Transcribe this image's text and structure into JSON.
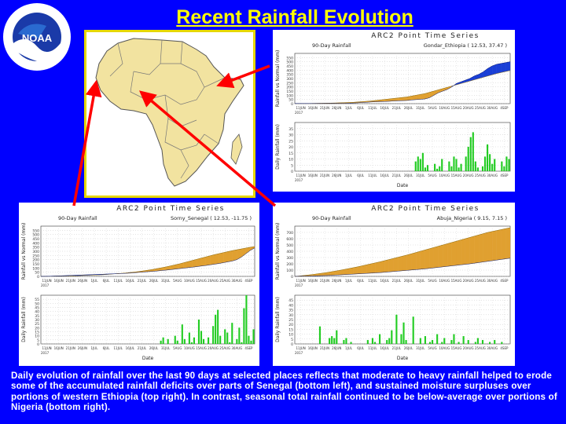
{
  "slide": {
    "title": "Recent Rainfall Evolution"
  },
  "logo": {
    "text": "NOAA"
  },
  "caption": "Daily evolution of rainfall over the last 90 days at selected places reflects that moderate to heavy rainfall helped to erode some of the accumulated rainfall deficits over parts of Senegal (bottom left), and sustained moisture surpluses over portions of western Ethiopia (top right). In contrast, seasonal total rainfall continued to be below-average over portions of Nigeria (bottom right).",
  "colors": {
    "background": "#0000ff",
    "title": "#ffff00",
    "surplus": "#1a3fd6",
    "deficit": "#e0a030",
    "daily": "#22cc22"
  },
  "chart_data": [
    {
      "type": "area",
      "panel": "ethiopia",
      "header": "ARC2 Point Time Series",
      "subtitle_left": "90-Day Rainfall",
      "subtitle_right": "Gondar_Ethiopia ( 12.53, 37.47 )",
      "ylabel_top": "Rainfall vs Normal (mm)",
      "ylabel_bottom": "Daily Rainfall (mm)",
      "xlabel": "Date",
      "ylim_top": [
        0,
        600
      ],
      "yticks_top": [
        "0",
        "50",
        "100",
        "150",
        "200",
        "250",
        "300",
        "350",
        "400",
        "450",
        "500",
        "550"
      ],
      "ylim_bottom": [
        0,
        40
      ],
      "yticks_bottom": [
        "0",
        "5",
        "10",
        "15",
        "20",
        "25",
        "30",
        "35"
      ],
      "surplus_color": "#1a3fd6",
      "deficit_color": "#e0a030",
      "series": [
        {
          "name": "Observed",
          "values": [
            2,
            2,
            2,
            2,
            2,
            2,
            2,
            3,
            3,
            3,
            3,
            4,
            6,
            8,
            10,
            14,
            16,
            20,
            22,
            24,
            26,
            28,
            32,
            34,
            36,
            38,
            44,
            48,
            52,
            56,
            70,
            100,
            130,
            150,
            170,
            200,
            240,
            260,
            280,
            300,
            330,
            350,
            380,
            420,
            450,
            470,
            480,
            490,
            500
          ]
        },
        {
          "name": "Normal",
          "values": [
            1,
            2,
            2,
            2,
            3,
            4,
            5,
            6,
            7,
            8,
            10,
            12,
            14,
            16,
            20,
            24,
            28,
            32,
            38,
            44,
            50,
            56,
            62,
            68,
            74,
            80,
            90,
            100,
            110,
            120,
            135,
            150,
            165,
            180,
            195,
            210,
            225,
            240,
            255,
            270,
            285,
            300,
            315,
            330,
            345,
            360,
            372,
            384,
            396
          ]
        }
      ],
      "daily": [
        0,
        0,
        0,
        0,
        0,
        0,
        0,
        0,
        0,
        0,
        0,
        0,
        0,
        0,
        0,
        0,
        0,
        0,
        0,
        0,
        0,
        0,
        0,
        0,
        0,
        0,
        0,
        0,
        0,
        0,
        0,
        0,
        0,
        0,
        0,
        0,
        0,
        0,
        0,
        0,
        0,
        0,
        0,
        0,
        0,
        0,
        0,
        0,
        0,
        0,
        8,
        12,
        10,
        15,
        3,
        5,
        0,
        0,
        6,
        2,
        4,
        10,
        0,
        0,
        8,
        4,
        12,
        10,
        3,
        6,
        0,
        12,
        20,
        28,
        32,
        8,
        3,
        0,
        4,
        12,
        22,
        14,
        6,
        10,
        0,
        0,
        8,
        4,
        12,
        10
      ]
    },
    {
      "type": "area",
      "panel": "senegal",
      "header": "ARC2 Point Time Series",
      "subtitle_left": "90-Day Rainfall",
      "subtitle_right": "Sorny_Senegal ( 12.53, -11.75 )",
      "ylabel_top": "Rainfall vs Normal (mm)",
      "ylabel_bottom": "Daily Rainfall (mm)",
      "xlabel": "Date",
      "ylim_top": [
        0,
        600
      ],
      "yticks_top": [
        "0",
        "50",
        "100",
        "150",
        "200",
        "250",
        "300",
        "350",
        "400",
        "450",
        "500",
        "550"
      ],
      "ylim_bottom": [
        0,
        60
      ],
      "yticks_bottom": [
        "0",
        "5",
        "10",
        "15",
        "20",
        "25",
        "30",
        "35",
        "40",
        "45",
        "50",
        "55"
      ],
      "surplus_color": "#1a3fd6",
      "deficit_color": "#e0a030",
      "series": [
        {
          "name": "Observed",
          "values": [
            0,
            1,
            2,
            4,
            6,
            8,
            10,
            12,
            14,
            16,
            18,
            20,
            22,
            24,
            26,
            28,
            30,
            32,
            34,
            36,
            40,
            44,
            48,
            52,
            56,
            60,
            64,
            70,
            74,
            80,
            86,
            92,
            98,
            104,
            110,
            116,
            124,
            130,
            138,
            146,
            154,
            164,
            174,
            184,
            200,
            230,
            270,
            310,
            340
          ]
        },
        {
          "name": "Normal",
          "values": [
            0,
            1,
            2,
            3,
            4,
            5,
            6,
            7,
            8,
            10,
            12,
            14,
            16,
            18,
            20,
            24,
            28,
            32,
            36,
            40,
            46,
            52,
            58,
            66,
            74,
            82,
            92,
            102,
            112,
            124,
            136,
            148,
            162,
            176,
            190,
            204,
            218,
            232,
            246,
            260,
            272,
            284,
            296,
            308,
            318,
            328,
            338,
            348,
            356
          ]
        }
      ],
      "daily": [
        0,
        0,
        0,
        0,
        0,
        0,
        0,
        0,
        0,
        0,
        0,
        0,
        0,
        0,
        0,
        0,
        0,
        0,
        0,
        0,
        0,
        0,
        0,
        0,
        0,
        0,
        0,
        0,
        0,
        0,
        0,
        0,
        0,
        0,
        0,
        0,
        0,
        0,
        0,
        0,
        0,
        0,
        0,
        0,
        0,
        0,
        0,
        0,
        0,
        0,
        4,
        8,
        0,
        6,
        0,
        0,
        10,
        4,
        0,
        24,
        6,
        0,
        14,
        2,
        8,
        0,
        30,
        16,
        6,
        0,
        8,
        0,
        22,
        36,
        42,
        10,
        0,
        18,
        14,
        2,
        26,
        0,
        6,
        20,
        2,
        44,
        60,
        10,
        4,
        18
      ]
    },
    {
      "type": "area",
      "panel": "nigeria",
      "header": "ARC2 Point Time Series",
      "subtitle_left": "90-Day Rainfall",
      "subtitle_right": "Abuja_Nigeria ( 9.15, 7.15 )",
      "ylabel_top": "Rainfall vs Normal (mm)",
      "ylabel_bottom": "Daily Rainfall (mm)",
      "xlabel": "Date",
      "ylim_top": [
        0,
        800
      ],
      "yticks_top": [
        "0",
        "100",
        "200",
        "300",
        "400",
        "500",
        "600",
        "700"
      ],
      "ylim_bottom": [
        0,
        50
      ],
      "yticks_bottom": [
        "0",
        "5",
        "10",
        "15",
        "20",
        "25",
        "30",
        "35",
        "40",
        "45"
      ],
      "surplus_color": "#1a3fd6",
      "deficit_color": "#e0a030",
      "series": [
        {
          "name": "Observed",
          "values": [
            0,
            2,
            4,
            6,
            8,
            10,
            12,
            14,
            16,
            20,
            24,
            28,
            32,
            36,
            40,
            44,
            48,
            52,
            56,
            60,
            66,
            72,
            78,
            84,
            90,
            96,
            102,
            108,
            114,
            120,
            128,
            136,
            144,
            152,
            160,
            168,
            176,
            184,
            192,
            200,
            210,
            220,
            230,
            240,
            250,
            260,
            270,
            280,
            290
          ]
        },
        {
          "name": "Normal",
          "values": [
            0,
            6,
            14,
            22,
            30,
            40,
            50,
            60,
            72,
            84,
            96,
            110,
            124,
            138,
            152,
            168,
            184,
            200,
            216,
            232,
            250,
            268,
            286,
            304,
            322,
            340,
            360,
            380,
            400,
            420,
            440,
            460,
            480,
            500,
            520,
            540,
            560,
            580,
            600,
            620,
            640,
            660,
            680,
            700,
            715,
            730,
            745,
            760,
            775
          ]
        }
      ],
      "daily": [
        0,
        0,
        0,
        0,
        0,
        0,
        0,
        0,
        0,
        0,
        18,
        0,
        0,
        0,
        6,
        8,
        6,
        14,
        0,
        0,
        4,
        6,
        0,
        2,
        0,
        0,
        0,
        0,
        0,
        0,
        4,
        0,
        6,
        2,
        0,
        10,
        0,
        0,
        4,
        6,
        14,
        0,
        30,
        0,
        10,
        22,
        4,
        0,
        0,
        28,
        0,
        0,
        6,
        0,
        8,
        0,
        2,
        4,
        0,
        10,
        0,
        2,
        6,
        0,
        0,
        4,
        10,
        0,
        2,
        0,
        8,
        0,
        4,
        0,
        0,
        2,
        6,
        0,
        4,
        0,
        0,
        2,
        0,
        4,
        0,
        0,
        2,
        0,
        0,
        0
      ]
    }
  ],
  "x_ticks": [
    "11JUN",
    "16JUN",
    "21JUN",
    "26JUN",
    "1JUL",
    "6JUL",
    "11JUL",
    "16JUL",
    "21JUL",
    "26JUL",
    "31JUL",
    "5AUG",
    "10AUG",
    "15AUG",
    "20AUG",
    "25AUG",
    "30AUG",
    "4SEP"
  ],
  "x_year": "2017"
}
